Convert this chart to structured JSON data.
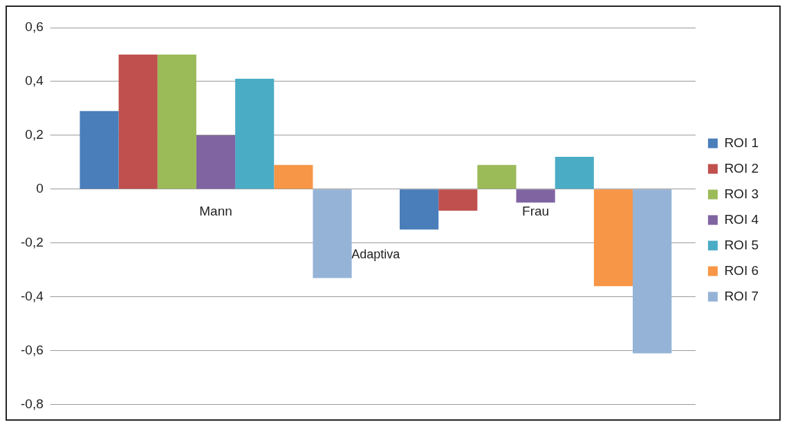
{
  "chart_data": {
    "type": "bar",
    "xlabel": "Adaptiva",
    "categories": [
      "Mann",
      "Frau"
    ],
    "series": [
      {
        "name": "ROI 1",
        "color": "#4a7ebb",
        "values": [
          0.29,
          -0.15
        ]
      },
      {
        "name": "ROI 2",
        "color": "#c0504d",
        "values": [
          0.5,
          -0.08
        ]
      },
      {
        "name": "ROI 3",
        "color": "#9bbb59",
        "values": [
          0.5,
          0.09
        ]
      },
      {
        "name": "ROI 4",
        "color": "#8064a2",
        "values": [
          0.2,
          -0.05
        ]
      },
      {
        "name": "ROI 5",
        "color": "#4bacc6",
        "values": [
          0.41,
          0.12
        ]
      },
      {
        "name": "ROI 6",
        "color": "#f79646",
        "values": [
          0.09,
          -0.36
        ]
      },
      {
        "name": "ROI 7",
        "color": "#95b3d7",
        "values": [
          -0.33,
          -0.61
        ]
      }
    ],
    "ylim": [
      -0.8,
      0.6
    ],
    "yticks": [
      {
        "value": -0.8,
        "label": "-0,8"
      },
      {
        "value": -0.6,
        "label": "-0,6"
      },
      {
        "value": -0.4,
        "label": "-0,4"
      },
      {
        "value": -0.2,
        "label": "-0,2"
      },
      {
        "value": 0,
        "label": "0"
      },
      {
        "value": 0.2,
        "label": "0,2"
      },
      {
        "value": 0.4,
        "label": "0,4"
      },
      {
        "value": 0.6,
        "label": "0,6"
      }
    ],
    "grid": "y",
    "legend": "right"
  }
}
